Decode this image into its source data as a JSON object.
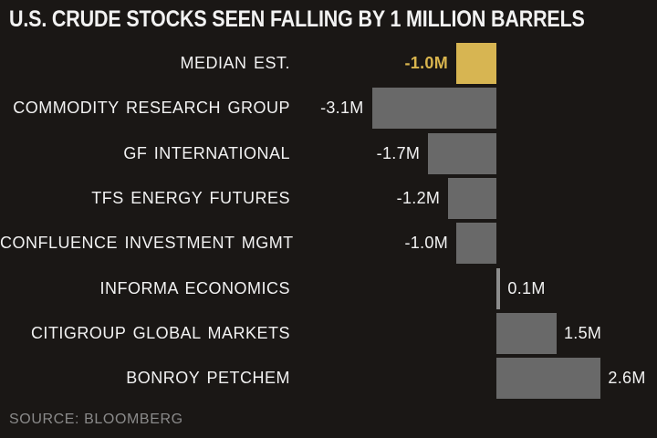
{
  "header": {
    "title": "U.S. CRUDE STOCKS SEEN FALLING BY 1 MILLION BARRELS"
  },
  "footer": {
    "source": "SOURCE: BLOOMBERG"
  },
  "colors": {
    "background": "#1a1715",
    "bar_default": "#696969",
    "bar_small": "#8c8c8c",
    "bar_highlight": "#d7b552",
    "category_text": "#f2f2f2",
    "value_text": "#f2f2f2",
    "highlight_value_text": "#d9b54e",
    "source_text": "#8a8a8a"
  },
  "chart_data": {
    "type": "bar",
    "orientation": "horizontal",
    "title": "U.S. CRUDE STOCKS SEEN FALLING BY 1 MILLION BARRELS",
    "unit": "million barrels",
    "xlim": [
      -3.5,
      3.0
    ],
    "grid": false,
    "legend": false,
    "categories": [
      "MEDIAN EST.",
      "COMMODITY RESEARCH GROUP",
      "GF INTERNATIONAL",
      "TFS ENERGY FUTURES",
      "CONFLUENCE INVESTMENT MGMT",
      "INFORMA ECONOMICS",
      "CITIGROUP GLOBAL MARKETS",
      "BONROY PETCHEM"
    ],
    "values": [
      -1.0,
      -3.1,
      -1.7,
      -1.2,
      -1.0,
      0.1,
      1.5,
      2.6
    ],
    "value_labels": [
      "-1.0M",
      "-3.1M",
      "-1.7M",
      "-1.2M",
      "-1.0M",
      "0.1M",
      "1.5M",
      "2.6M"
    ],
    "highlighted_index": 0
  }
}
